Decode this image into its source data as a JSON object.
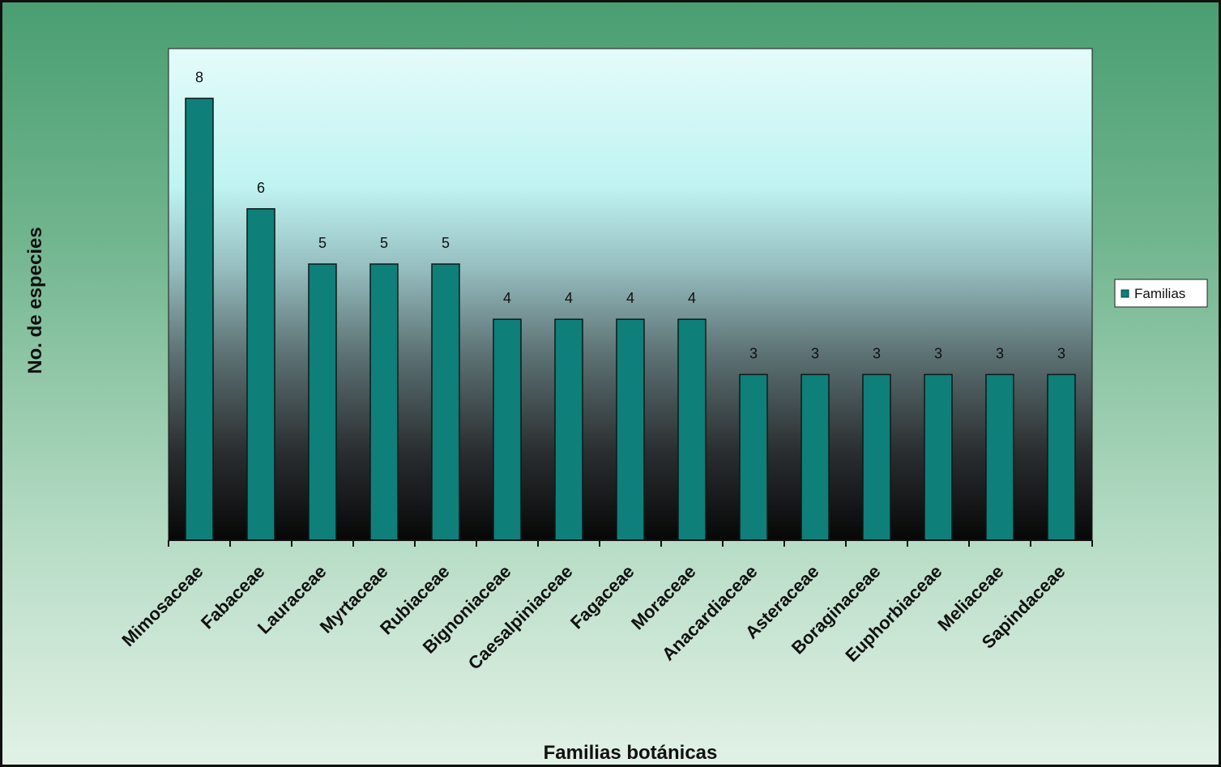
{
  "chart_data": {
    "type": "bar",
    "title": "",
    "xlabel": "Familias botánicas",
    "ylabel": "No. de especies",
    "categories": [
      "Mimosaceae",
      "Fabaceae",
      "Lauraceae",
      "Myrtaceae",
      "Rubiaceae",
      "Bignoniaceae",
      "Caesalpiniaceae",
      "Fagaceae",
      "Moraceae",
      "Anacardiaceae",
      "Asteraceae",
      "Boraginaceae",
      "Euphorbiaceae",
      "Meliaceae",
      "Sapindaceae"
    ],
    "series": [
      {
        "name": "Familias",
        "values": [
          8,
          6,
          5,
          5,
          5,
          4,
          4,
          4,
          4,
          3,
          3,
          3,
          3,
          3,
          3
        ],
        "color": "#0f7f79"
      }
    ],
    "ylim": [
      0,
      8.9
    ],
    "grid": false,
    "legend": "right"
  }
}
